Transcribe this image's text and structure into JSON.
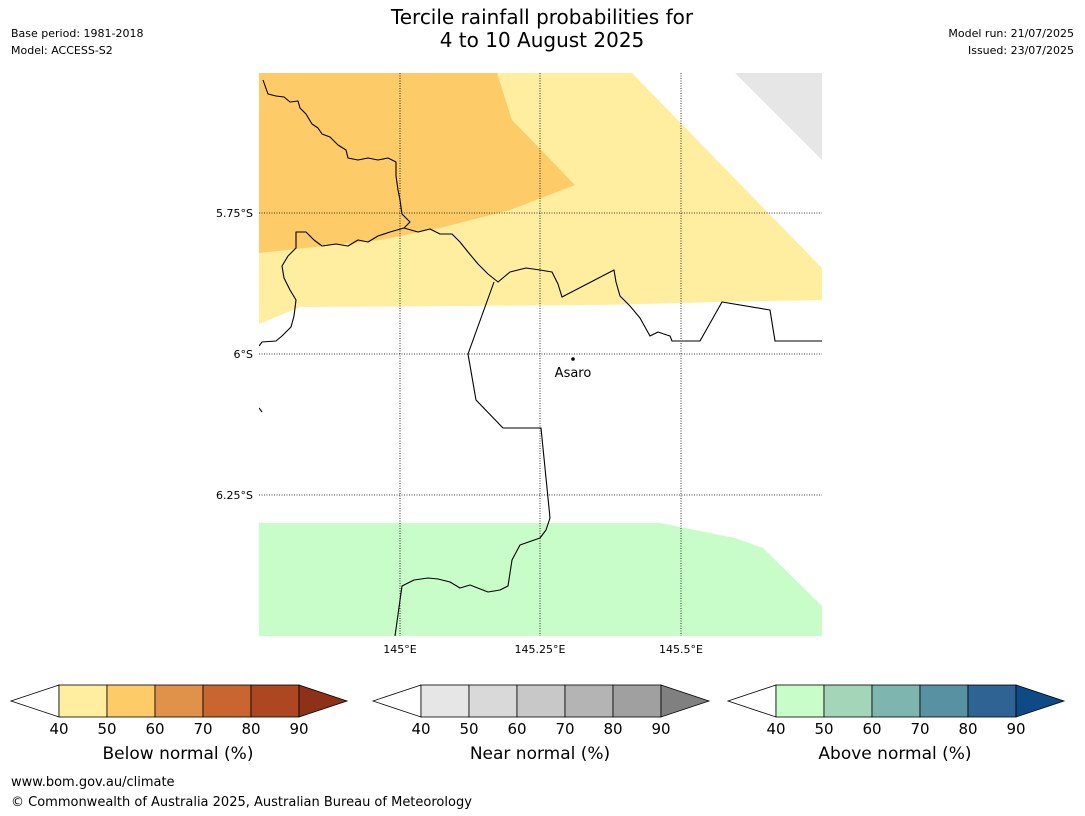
{
  "header": {
    "title_line1": "Tercile rainfall probabilities for",
    "title_line2": "4 to 10 August 2025",
    "base_period": "Base period: 1981-2018",
    "model": "Model: ACCESS-S2",
    "model_run": "Model run: 21/07/2025",
    "issued": "Issued: 23/07/2025"
  },
  "map": {
    "lat_labels": [
      "5.75°S",
      "6°S",
      "6.25°S"
    ],
    "lon_labels": [
      "145°E",
      "145.25°E",
      "145.5°E"
    ],
    "place": "Asaro",
    "colors": {
      "below_50": "#fdcc69",
      "below_40": "#ffeda0",
      "above_40": "#c8fcc8",
      "no_data": "#e6e6e6",
      "border": "#000000"
    }
  },
  "colorbars": [
    {
      "label": "Below normal (%)",
      "ticks": [
        "40",
        "50",
        "60",
        "70",
        "80",
        "90"
      ],
      "colors": [
        "#ffffff",
        "#ffeda0",
        "#fdcc69",
        "#e0924a",
        "#c9652f",
        "#ad4722",
        "#8e3119"
      ]
    },
    {
      "label": "Near normal (%)",
      "ticks": [
        "40",
        "50",
        "60",
        "70",
        "80",
        "90"
      ],
      "colors": [
        "#ffffff",
        "#e6e6e6",
        "#d9d9d9",
        "#c8c8c8",
        "#b4b4b4",
        "#a0a0a0",
        "#808080"
      ]
    },
    {
      "label": "Above normal (%)",
      "ticks": [
        "40",
        "50",
        "60",
        "70",
        "80",
        "90"
      ],
      "colors": [
        "#ffffff",
        "#c8fcc8",
        "#a3d6b8",
        "#7fb5af",
        "#5891a1",
        "#2f6393",
        "#0e4a85"
      ]
    }
  ],
  "footer": {
    "url": "www.bom.gov.au/climate",
    "copyright": "© Commonwealth of Australia 2025, Australian Bureau of Meteorology"
  }
}
